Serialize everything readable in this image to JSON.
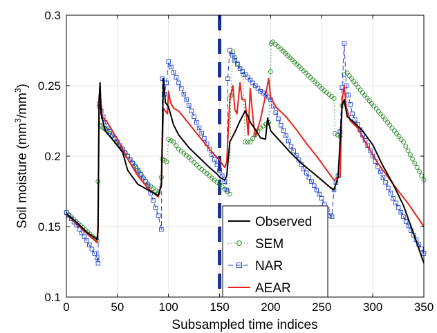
{
  "chart_data": {
    "type": "line",
    "title": "",
    "xlabel": "Subsampled time indices",
    "ylabel": "Soil moisture (mm3/mm3)",
    "ylabel_parts": {
      "main": "Soil moisture (mm",
      "sup1": "3",
      "mid": "/mm",
      "sup2": "3",
      "end": ")"
    },
    "xlim": [
      0,
      350
    ],
    "ylim": [
      0.1,
      0.3
    ],
    "xticks": [
      0,
      50,
      100,
      150,
      200,
      250,
      300,
      350
    ],
    "yticks": [
      0.1,
      0.15,
      0.2,
      0.25,
      0.3
    ],
    "xtick_labels": [
      "0",
      "50",
      "100",
      "150",
      "200",
      "250",
      "300",
      "350"
    ],
    "ytick_labels": [
      "0.1",
      "0.15",
      "0.2",
      "0.25",
      "0.3"
    ],
    "grid": true,
    "legend_position": "bottom-center",
    "vertical_marker": {
      "x": 150,
      "style": "dashed",
      "color": "#1a2f8f"
    },
    "series": [
      {
        "name": "Observed",
        "color": "#000000",
        "style": "solid",
        "marker": "none",
        "points": [
          [
            0,
            0.159
          ],
          [
            10,
            0.153
          ],
          [
            20,
            0.146
          ],
          [
            30,
            0.141
          ],
          [
            31,
            0.148
          ],
          [
            32,
            0.24
          ],
          [
            33,
            0.252
          ],
          [
            34,
            0.23
          ],
          [
            38,
            0.218
          ],
          [
            45,
            0.212
          ],
          [
            55,
            0.203
          ],
          [
            60,
            0.19
          ],
          [
            65,
            0.185
          ],
          [
            70,
            0.18
          ],
          [
            80,
            0.176
          ],
          [
            90,
            0.172
          ],
          [
            93,
            0.18
          ],
          [
            95,
            0.255
          ],
          [
            97,
            0.238
          ],
          [
            100,
            0.235
          ],
          [
            105,
            0.222
          ],
          [
            110,
            0.215
          ],
          [
            120,
            0.206
          ],
          [
            130,
            0.199
          ],
          [
            140,
            0.192
          ],
          [
            148,
            0.187
          ],
          [
            150,
            0.185
          ],
          [
            155,
            0.183
          ],
          [
            157,
            0.186
          ],
          [
            160,
            0.21
          ],
          [
            165,
            0.217
          ],
          [
            170,
            0.225
          ],
          [
            175,
            0.232
          ],
          [
            178,
            0.228
          ],
          [
            180,
            0.224
          ],
          [
            185,
            0.219
          ],
          [
            190,
            0.213
          ],
          [
            195,
            0.212
          ],
          [
            197,
            0.227
          ],
          [
            200,
            0.218
          ],
          [
            210,
            0.21
          ],
          [
            220,
            0.202
          ],
          [
            230,
            0.195
          ],
          [
            240,
            0.189
          ],
          [
            250,
            0.183
          ],
          [
            258,
            0.178
          ],
          [
            262,
            0.176
          ],
          [
            266,
            0.185
          ],
          [
            270,
            0.236
          ],
          [
            272,
            0.24
          ],
          [
            275,
            0.228
          ],
          [
            280,
            0.225
          ],
          [
            290,
            0.218
          ],
          [
            300,
            0.208
          ],
          [
            310,
            0.193
          ],
          [
            320,
            0.18
          ],
          [
            330,
            0.165
          ],
          [
            340,
            0.145
          ],
          [
            350,
            0.124
          ]
        ]
      },
      {
        "name": "SEM",
        "color": "#2e8b2e",
        "style": "dotted",
        "marker": "circle",
        "points": [
          [
            0,
            0.16
          ],
          [
            30,
            0.14
          ],
          [
            31,
            0.182
          ],
          [
            32,
            0.235
          ],
          [
            33,
            0.222
          ],
          [
            34,
            0.221
          ],
          [
            40,
            0.218
          ],
          [
            60,
            0.2
          ],
          [
            80,
            0.18
          ],
          [
            90,
            0.174
          ],
          [
            93,
            0.185
          ],
          [
            94,
            0.198
          ],
          [
            96,
            0.197
          ],
          [
            98,
            0.196
          ],
          [
            100,
            0.212
          ],
          [
            105,
            0.21
          ],
          [
            110,
            0.205
          ],
          [
            120,
            0.199
          ],
          [
            130,
            0.192
          ],
          [
            140,
            0.186
          ],
          [
            150,
            0.18
          ],
          [
            160,
            0.173
          ],
          [
            161,
            0.243
          ],
          [
            163,
            0.274
          ],
          [
            165,
            0.27
          ],
          [
            170,
            0.262
          ],
          [
            173,
            0.258
          ],
          [
            175,
            0.21
          ],
          [
            180,
            0.21
          ],
          [
            190,
            0.22
          ],
          [
            198,
            0.224
          ],
          [
            200,
            0.26
          ],
          [
            200.5,
            0.28
          ],
          [
            202,
            0.281
          ],
          [
            210,
            0.276
          ],
          [
            230,
            0.262
          ],
          [
            250,
            0.248
          ],
          [
            262,
            0.241
          ],
          [
            263,
            0.216
          ],
          [
            268,
            0.214
          ],
          [
            272,
            0.258
          ],
          [
            275,
            0.259
          ],
          [
            290,
            0.245
          ],
          [
            310,
            0.228
          ],
          [
            330,
            0.21
          ],
          [
            350,
            0.183
          ]
        ]
      },
      {
        "name": "NAR",
        "color": "#1f3fcf",
        "style": "dashed",
        "marker": "square",
        "points": [
          [
            0,
            0.16
          ],
          [
            10,
            0.151
          ],
          [
            20,
            0.14
          ],
          [
            30,
            0.128
          ],
          [
            31,
            0.124
          ],
          [
            32,
            0.237
          ],
          [
            34,
            0.232
          ],
          [
            40,
            0.22
          ],
          [
            50,
            0.21
          ],
          [
            60,
            0.2
          ],
          [
            70,
            0.19
          ],
          [
            80,
            0.179
          ],
          [
            90,
            0.158
          ],
          [
            93,
            0.148
          ],
          [
            94,
            0.255
          ],
          [
            96,
            0.244
          ],
          [
            98,
            0.252
          ],
          [
            100,
            0.267
          ],
          [
            110,
            0.252
          ],
          [
            120,
            0.236
          ],
          [
            130,
            0.22
          ],
          [
            140,
            0.205
          ],
          [
            150,
            0.19
          ],
          [
            155,
            0.182
          ],
          [
            157,
            0.176
          ],
          [
            158,
            0.255
          ],
          [
            160,
            0.275
          ],
          [
            165,
            0.268
          ],
          [
            170,
            0.262
          ],
          [
            180,
            0.254
          ],
          [
            190,
            0.246
          ],
          [
            198,
            0.242
          ],
          [
            200,
            0.24
          ],
          [
            210,
            0.222
          ],
          [
            220,
            0.207
          ],
          [
            230,
            0.194
          ],
          [
            240,
            0.182
          ],
          [
            250,
            0.17
          ],
          [
            258,
            0.158
          ],
          [
            260,
            0.157
          ],
          [
            262,
            0.176
          ],
          [
            266,
            0.186
          ],
          [
            272,
            0.28
          ],
          [
            274,
            0.25
          ],
          [
            280,
            0.23
          ],
          [
            290,
            0.215
          ],
          [
            300,
            0.2
          ],
          [
            310,
            0.185
          ],
          [
            320,
            0.17
          ],
          [
            330,
            0.157
          ],
          [
            340,
            0.144
          ],
          [
            350,
            0.131
          ]
        ]
      },
      {
        "name": "AEAR",
        "color": "#e8211a",
        "style": "solid",
        "marker": "none",
        "points": [
          [
            0,
            0.159
          ],
          [
            10,
            0.152
          ],
          [
            20,
            0.145
          ],
          [
            30,
            0.139
          ],
          [
            31,
            0.146
          ],
          [
            32,
            0.242
          ],
          [
            33,
            0.247
          ],
          [
            35,
            0.228
          ],
          [
            40,
            0.224
          ],
          [
            50,
            0.212
          ],
          [
            60,
            0.198
          ],
          [
            70,
            0.186
          ],
          [
            80,
            0.177
          ],
          [
            90,
            0.171
          ],
          [
            93,
            0.18
          ],
          [
            95,
            0.234
          ],
          [
            97,
            0.232
          ],
          [
            99,
            0.23
          ],
          [
            100,
            0.246
          ],
          [
            102,
            0.238
          ],
          [
            105,
            0.234
          ],
          [
            110,
            0.232
          ],
          [
            120,
            0.223
          ],
          [
            130,
            0.214
          ],
          [
            140,
            0.205
          ],
          [
            150,
            0.197
          ],
          [
            155,
            0.192
          ],
          [
            157,
            0.196
          ],
          [
            160,
            0.24
          ],
          [
            163,
            0.25
          ],
          [
            165,
            0.233
          ],
          [
            167,
            0.23
          ],
          [
            170,
            0.252
          ],
          [
            172,
            0.24
          ],
          [
            175,
            0.24
          ],
          [
            178,
            0.215
          ],
          [
            180,
            0.248
          ],
          [
            183,
            0.225
          ],
          [
            185,
            0.214
          ],
          [
            190,
            0.226
          ],
          [
            195,
            0.243
          ],
          [
            198,
            0.255
          ],
          [
            200,
            0.242
          ],
          [
            205,
            0.235
          ],
          [
            215,
            0.228
          ],
          [
            225,
            0.219
          ],
          [
            235,
            0.209
          ],
          [
            245,
            0.2
          ],
          [
            255,
            0.19
          ],
          [
            262,
            0.183
          ],
          [
            266,
            0.185
          ],
          [
            268,
            0.185
          ],
          [
            270,
            0.24
          ],
          [
            272,
            0.25
          ],
          [
            274,
            0.235
          ],
          [
            278,
            0.225
          ],
          [
            285,
            0.22
          ],
          [
            295,
            0.207
          ],
          [
            305,
            0.195
          ],
          [
            320,
            0.18
          ],
          [
            335,
            0.166
          ],
          [
            350,
            0.15
          ]
        ]
      }
    ]
  }
}
